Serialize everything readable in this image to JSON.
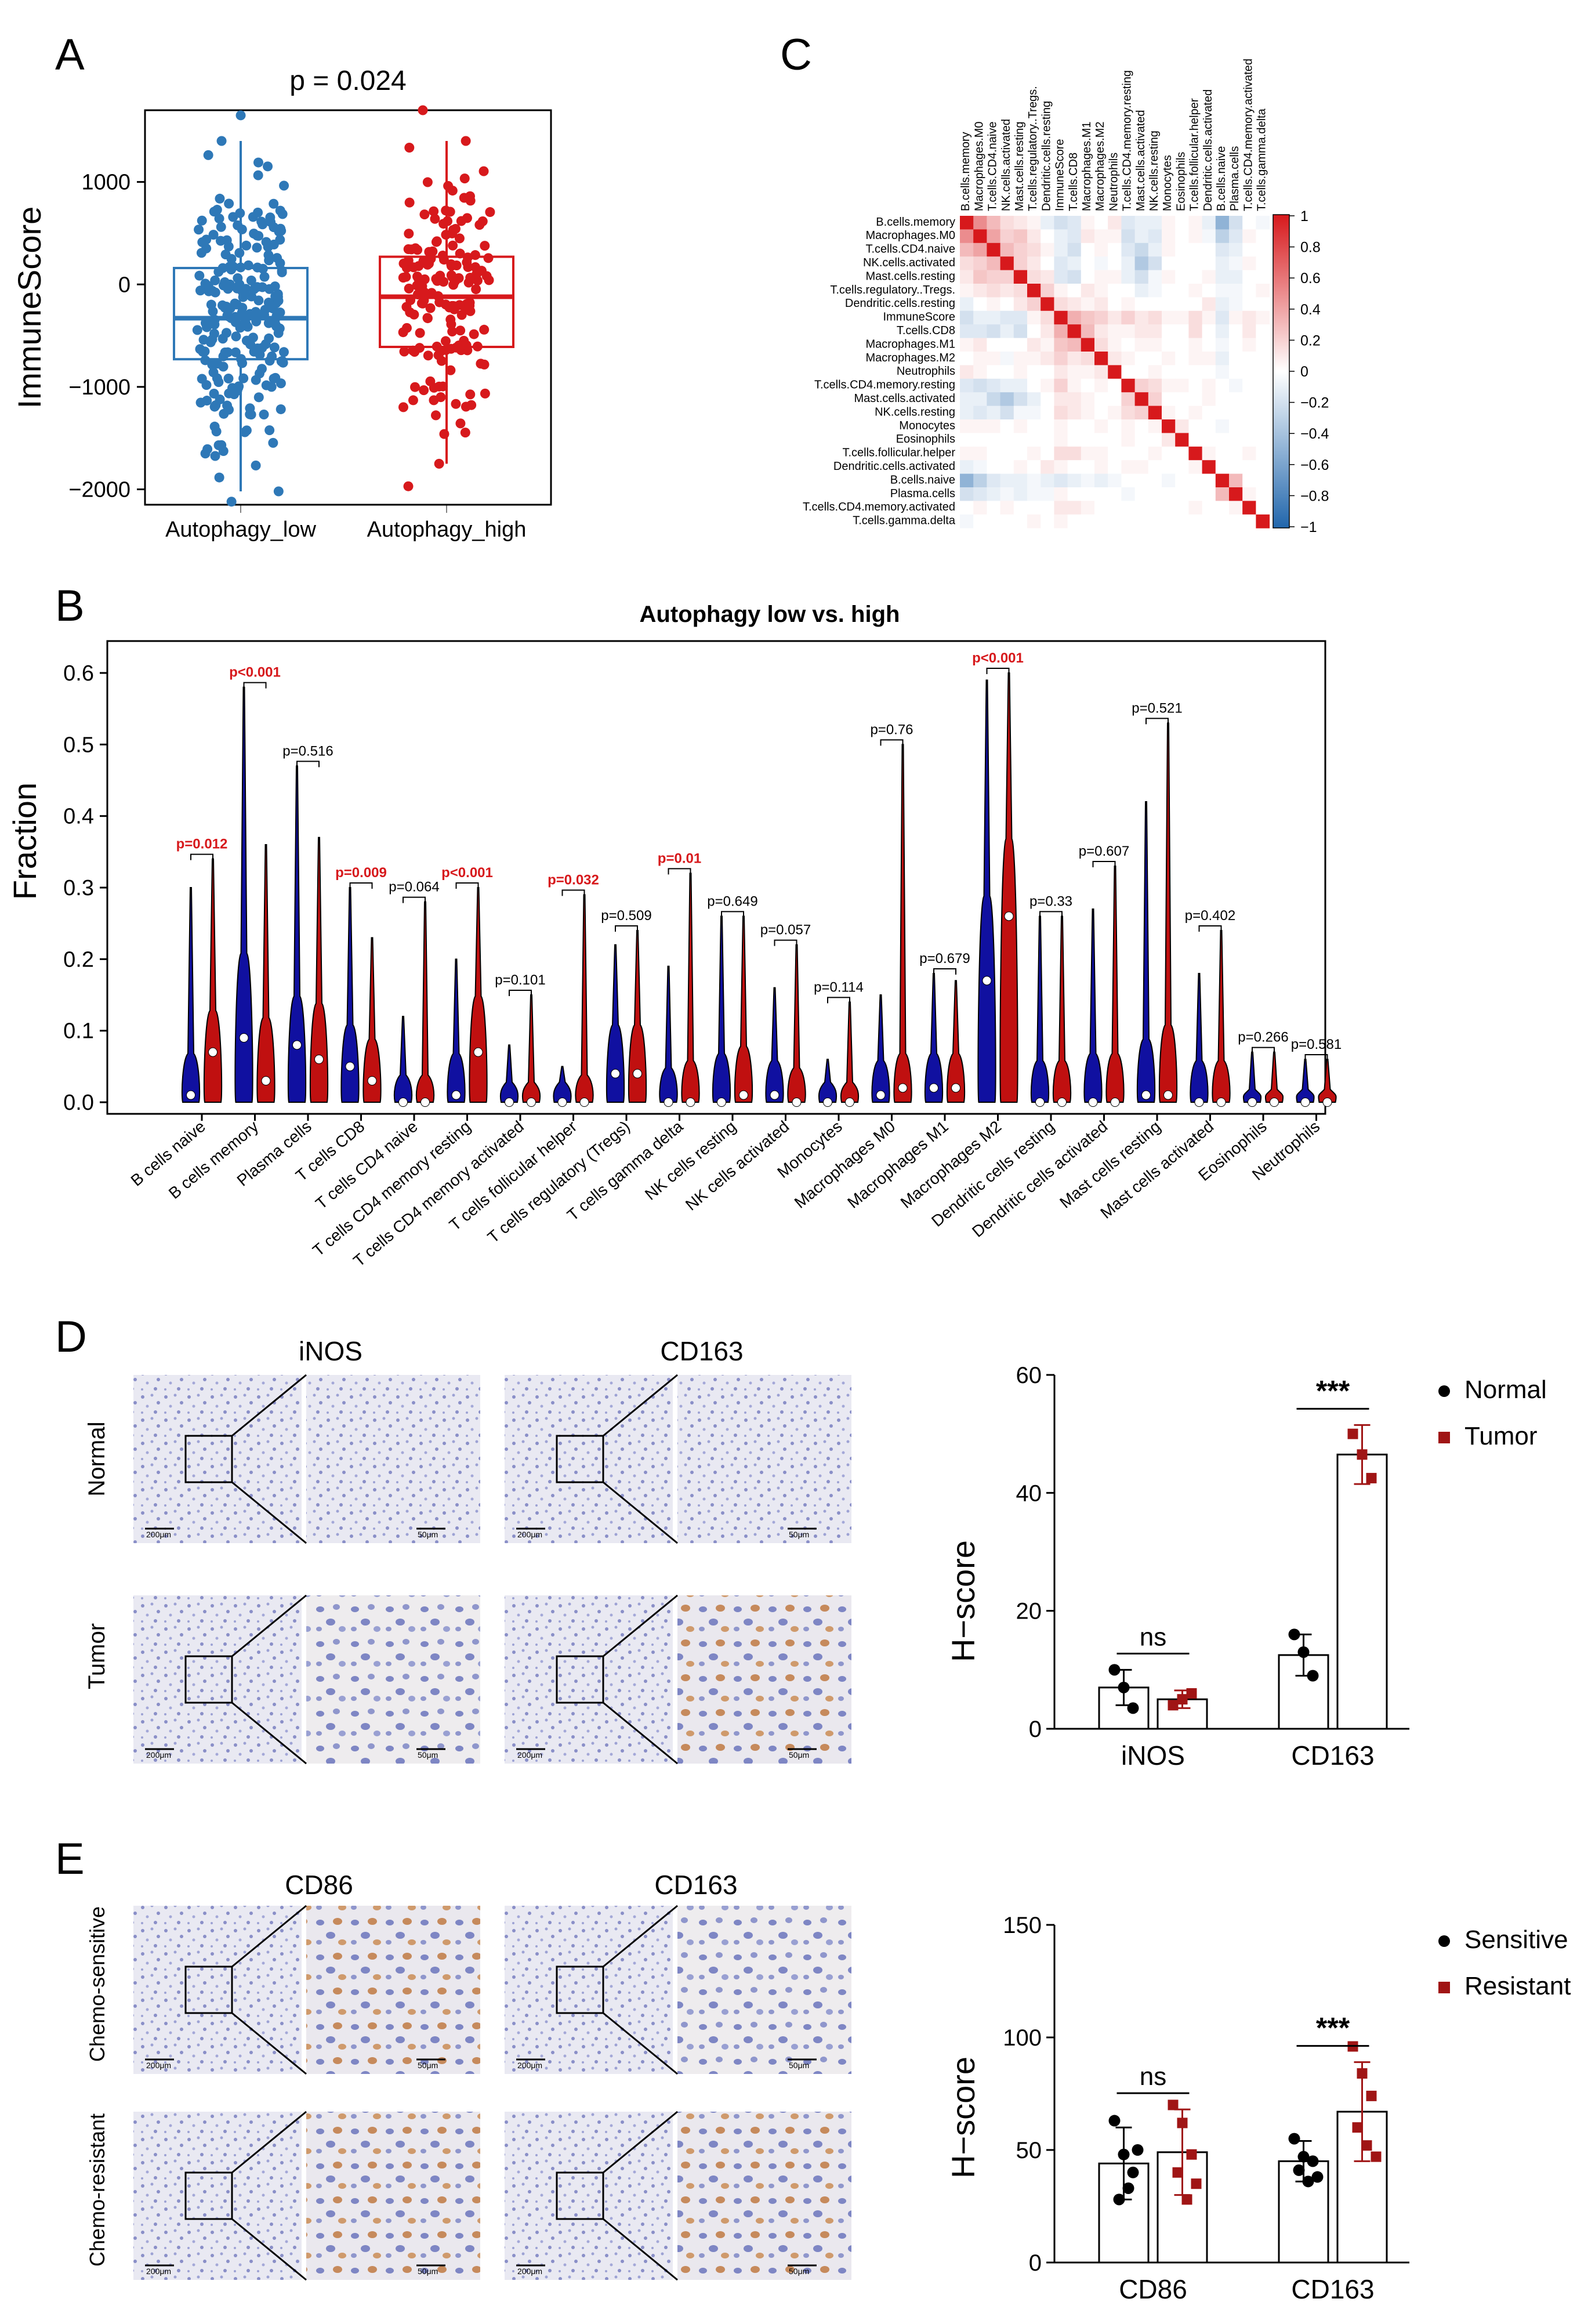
{
  "panels": {
    "A": "A",
    "B": "B",
    "C": "C",
    "D": "D",
    "E": "E"
  },
  "colors": {
    "blue": "#2E78B7",
    "red": "#D7191C",
    "violin_blue": "#1010A0",
    "violin_red": "#C01010",
    "dark_red": "#A01515",
    "black": "#000000"
  },
  "chart_data": [
    {
      "id": "A",
      "type": "box",
      "annotation": "p = 0.024",
      "ylabel": "ImmuneScore",
      "ylim": [
        -2150,
        1700
      ],
      "yticks": [
        1000,
        0,
        -1000,
        -2000
      ],
      "ytick_labels": [
        "1000",
        "0",
        "−1000",
        "−2000"
      ],
      "categories": [
        "Autophagy_low",
        "Autophagy_high"
      ],
      "series": [
        {
          "name": "Autophagy_low",
          "color": "#2E78B7",
          "n": 230,
          "q1": -730,
          "median": -330,
          "q3": 160,
          "whisker_low": -2020,
          "whisker_high": 1400,
          "min": -2120,
          "max": 1650
        },
        {
          "name": "Autophagy_high",
          "color": "#D7191C",
          "n": 170,
          "q1": -610,
          "median": -120,
          "q3": 270,
          "whisker_low": -1750,
          "whisker_high": 1400,
          "min": -1970,
          "max": 1700
        }
      ]
    },
    {
      "id": "C",
      "type": "heatmap",
      "labels": [
        "B.cells.memory",
        "Macrophages.M0",
        "T.cells.CD4.naive",
        "NK.cells.activated",
        "Mast.cells.resting",
        "T.cells.regulatory..Tregs.",
        "Dendritic.cells.resting",
        "ImmuneScore",
        "T.cells.CD8",
        "Macrophages.M1",
        "Macrophages.M2",
        "Neutrophils",
        "T.cells.CD4.memory.resting",
        "Mast.cells.activated",
        "NK.cells.resting",
        "Monocytes",
        "Eosinophils",
        "T.cells.follicular.helper",
        "Dendritic.cells.activated",
        "B.cells.naive",
        "Plasma.cells",
        "T.cells.CD4.memory.activated",
        "T.cells.gamma.delta"
      ],
      "colorbar_ticks": [
        1,
        0.8,
        0.6,
        0.4,
        0.2,
        0,
        -0.2,
        -0.4,
        -0.6,
        -0.8,
        -1
      ],
      "colorbar_labels": [
        "1",
        "0.8",
        "0.6",
        "0.4",
        "0.2",
        "0",
        "−0.2",
        "−0.4",
        "−0.6",
        "−0.8",
        "−1"
      ],
      "values": [
        [
          1,
          0.5,
          0.3,
          0.15,
          0.1,
          0.05,
          -0.1,
          -0.2,
          -0.15,
          0.05,
          0,
          0.1,
          -0.15,
          -0.1,
          -0.1,
          0.05,
          0,
          0.05,
          -0.1,
          -0.5,
          -0.2,
          0,
          -0.05
        ],
        [
          0.5,
          1,
          0.4,
          0.2,
          0.25,
          0.1,
          0,
          -0.1,
          -0.15,
          0.1,
          0.05,
          0.05,
          -0.2,
          -0.1,
          -0.15,
          0.05,
          0,
          0.05,
          -0.05,
          -0.3,
          -0.15,
          0.05,
          0
        ],
        [
          0.3,
          0.4,
          1,
          0.3,
          0.2,
          0.15,
          0.05,
          -0.1,
          -0.2,
          0,
          0.05,
          0,
          -0.15,
          -0.25,
          -0.1,
          0.05,
          0,
          0,
          0,
          -0.15,
          -0.1,
          0,
          0
        ],
        [
          0.15,
          0.2,
          0.3,
          1,
          0.2,
          0.1,
          0,
          -0.15,
          -0.1,
          0,
          -0.05,
          0,
          -0.1,
          -0.35,
          -0.2,
          0,
          0,
          0,
          0,
          -0.1,
          -0.05,
          0.05,
          0
        ],
        [
          0.1,
          0.25,
          0.2,
          0.2,
          1,
          0.15,
          0.1,
          -0.15,
          -0.2,
          0,
          0.05,
          0.05,
          -0.1,
          -0.2,
          -0.05,
          0.05,
          0,
          0,
          0.05,
          -0.1,
          -0.1,
          0,
          0
        ],
        [
          0.05,
          0.1,
          0.15,
          0.1,
          0.15,
          1,
          0.2,
          0.05,
          0,
          0.1,
          0.05,
          0,
          0,
          -0.1,
          -0.05,
          0,
          0,
          0.05,
          0,
          -0.05,
          -0.05,
          0,
          0.05
        ],
        [
          -0.1,
          0,
          0.05,
          0,
          0.1,
          0.2,
          1,
          0.15,
          0.1,
          0.05,
          0.1,
          0,
          0.05,
          0,
          0,
          0,
          0,
          0,
          0.1,
          -0.1,
          -0.05,
          0,
          0
        ],
        [
          -0.2,
          -0.1,
          -0.1,
          -0.15,
          -0.15,
          0.05,
          0.15,
          1,
          0.35,
          0.25,
          0.2,
          0.1,
          0.2,
          0.1,
          0.15,
          0.05,
          0.05,
          0.15,
          0.05,
          -0.15,
          0.05,
          0.1,
          0.05
        ],
        [
          -0.15,
          -0.15,
          -0.2,
          -0.1,
          -0.2,
          0,
          0.1,
          0.35,
          1,
          0.3,
          0.1,
          0.05,
          0.05,
          0.1,
          0.1,
          0,
          0,
          0.15,
          0,
          -0.1,
          0,
          0.1,
          0
        ],
        [
          0.05,
          0.1,
          0,
          0,
          0,
          0.1,
          0.05,
          0.25,
          0.3,
          1,
          0.15,
          0.05,
          0,
          0.05,
          0.05,
          0,
          0,
          0.05,
          0,
          -0.05,
          0,
          0.05,
          0
        ],
        [
          0,
          0.05,
          0.05,
          -0.05,
          0.05,
          0.05,
          0.1,
          0.2,
          0.1,
          0.15,
          1,
          0.1,
          0.05,
          0,
          0,
          0.05,
          0,
          0.05,
          0.05,
          -0.1,
          0,
          0,
          0
        ],
        [
          0.1,
          0.05,
          0,
          0,
          0.05,
          0,
          0,
          0.1,
          0.05,
          0.05,
          0.1,
          1,
          0,
          0,
          0.05,
          0,
          0,
          0,
          0,
          -0.05,
          0,
          0,
          0
        ],
        [
          -0.15,
          -0.2,
          -0.15,
          -0.1,
          -0.1,
          0,
          0.05,
          0.2,
          0.05,
          0,
          0.05,
          0,
          1,
          0.2,
          0.15,
          0.05,
          0.05,
          0,
          0.05,
          0,
          -0.05,
          0,
          0
        ],
        [
          -0.1,
          -0.1,
          -0.25,
          -0.35,
          -0.2,
          -0.1,
          0,
          0.1,
          0.1,
          0.05,
          0,
          0,
          0.2,
          1,
          0.2,
          0,
          0,
          0,
          0.05,
          0,
          0,
          0,
          0
        ],
        [
          -0.1,
          -0.15,
          -0.1,
          -0.2,
          -0.05,
          -0.05,
          0,
          0.15,
          0.1,
          0.05,
          0,
          0.05,
          0.15,
          0.2,
          1,
          0.05,
          0,
          0.05,
          0,
          0,
          0,
          0,
          0
        ],
        [
          0.05,
          0.05,
          0.05,
          0,
          0.05,
          0,
          0,
          0.05,
          0,
          0,
          0.05,
          0,
          0.05,
          0,
          0.05,
          1,
          0.1,
          0,
          0,
          -0.05,
          0,
          0,
          0
        ],
        [
          0,
          0,
          0,
          0,
          0,
          0,
          0,
          0.05,
          0,
          0,
          0,
          0,
          0.05,
          0,
          0,
          0.1,
          1,
          0,
          0,
          0,
          0,
          0,
          0
        ],
        [
          0.05,
          0.05,
          0,
          0,
          0,
          0.05,
          0,
          0.15,
          0.15,
          0.05,
          0.05,
          0,
          0,
          0,
          0.05,
          0,
          0,
          1,
          0.05,
          0,
          0,
          0.05,
          0
        ],
        [
          -0.1,
          -0.05,
          0,
          0,
          0.05,
          0,
          0.1,
          0.05,
          0,
          0,
          0.05,
          0,
          0.05,
          0.05,
          0,
          0,
          0,
          0.05,
          1,
          0,
          0,
          0,
          0
        ],
        [
          -0.5,
          -0.3,
          -0.15,
          -0.1,
          -0.1,
          -0.05,
          -0.1,
          -0.15,
          -0.1,
          -0.05,
          -0.1,
          -0.05,
          0,
          0,
          0,
          -0.05,
          0,
          0,
          0,
          1,
          0.3,
          0,
          0
        ],
        [
          -0.2,
          -0.15,
          -0.1,
          -0.05,
          -0.1,
          -0.05,
          -0.05,
          0.05,
          0,
          0,
          0,
          0,
          -0.05,
          0,
          0,
          0,
          0,
          0,
          0,
          0.3,
          1,
          0.05,
          0
        ],
        [
          0,
          0.05,
          0,
          0.05,
          0,
          0,
          0,
          0.1,
          0.1,
          0.05,
          0,
          0,
          0,
          0,
          0,
          0,
          0,
          0.05,
          0,
          0,
          0.05,
          1,
          0
        ],
        [
          -0.05,
          0,
          0,
          0,
          0,
          0.05,
          0,
          0.05,
          0,
          0,
          0,
          0,
          0,
          0,
          0,
          0,
          0,
          0,
          0,
          0,
          0,
          0,
          1
        ]
      ]
    },
    {
      "id": "B",
      "type": "violin",
      "title": "Autophagy low  vs. high",
      "ylabel": "Fraction",
      "ylim": [
        0,
        0.62
      ],
      "yticks": [
        0.0,
        0.1,
        0.2,
        0.3,
        0.4,
        0.5,
        0.6
      ],
      "ytick_labels": [
        "0.0",
        "0.1",
        "0.2",
        "0.3",
        "0.4",
        "0.5",
        "0.6"
      ],
      "series_names": [
        "Autophagy_low",
        "Autophagy_high"
      ],
      "categories": [
        "B cells naive",
        "B cells memory",
        "Plasma cells",
        "T cells CD8",
        "T cells CD4 naive",
        "T cells CD4 memory resting",
        "T cells CD4 memory activated",
        "T cells follicular helper",
        "T cells regulatory (Tregs)",
        "T cells gamma delta",
        "NK cells resting",
        "NK cells activated",
        "Monocytes",
        "Macrophages M0",
        "Macrophages M1",
        "Macrophages M2",
        "Dendritic cells resting",
        "Dendritic cells activated",
        "Mast cells resting",
        "Mast cells activated",
        "Eosinophils",
        "Neutrophils"
      ],
      "pvalues": [
        "0.012",
        "<0.001",
        "0.516",
        "0.009",
        "0.064",
        "<0.001",
        "0.101",
        "0.032",
        "0.509",
        "0.01",
        "0.649",
        "0.057",
        "0.114",
        "0.76",
        "0.679",
        "<0.001",
        "0.33",
        "0.607",
        "0.521",
        "0.402",
        "0.266",
        "0.581"
      ],
      "significant": [
        true,
        true,
        false,
        true,
        false,
        true,
        false,
        true,
        false,
        true,
        false,
        false,
        false,
        false,
        false,
        true,
        false,
        false,
        false,
        false,
        false,
        false
      ],
      "low_max": [
        0.3,
        0.58,
        0.47,
        0.3,
        0.12,
        0.2,
        0.08,
        0.05,
        0.22,
        0.19,
        0.26,
        0.16,
        0.06,
        0.15,
        0.18,
        0.59,
        0.26,
        0.27,
        0.42,
        0.18,
        0.07,
        0.06
      ],
      "high_max": [
        0.34,
        0.36,
        0.37,
        0.23,
        0.28,
        0.3,
        0.15,
        0.29,
        0.24,
        0.32,
        0.26,
        0.22,
        0.14,
        0.5,
        0.17,
        0.6,
        0.26,
        0.33,
        0.53,
        0.24,
        0.07,
        0.06
      ],
      "low_median": [
        0.01,
        0.09,
        0.08,
        0.05,
        0.0,
        0.01,
        0.0,
        0.0,
        0.04,
        0.0,
        0.0,
        0.01,
        0.0,
        0.01,
        0.02,
        0.17,
        0.0,
        0.0,
        0.01,
        0.0,
        0.0,
        0.0
      ],
      "high_median": [
        0.07,
        0.03,
        0.06,
        0.03,
        0.0,
        0.07,
        0.0,
        0.0,
        0.04,
        0.0,
        0.01,
        0.0,
        0.0,
        0.02,
        0.02,
        0.26,
        0.0,
        0.0,
        0.01,
        0.0,
        0.0,
        0.0
      ],
      "low_body": [
        0.06,
        0.2,
        0.14,
        0.1,
        0.03,
        0.06,
        0.02,
        0.02,
        0.1,
        0.04,
        0.06,
        0.05,
        0.02,
        0.05,
        0.06,
        0.28,
        0.05,
        0.06,
        0.08,
        0.05,
        0.01,
        0.01
      ],
      "high_body": [
        0.12,
        0.11,
        0.13,
        0.08,
        0.03,
        0.14,
        0.02,
        0.03,
        0.1,
        0.05,
        0.07,
        0.04,
        0.02,
        0.06,
        0.06,
        0.36,
        0.05,
        0.06,
        0.1,
        0.05,
        0.01,
        0.01
      ]
    },
    {
      "id": "D",
      "type": "bar",
      "ylabel": "H−score",
      "ylim": [
        0,
        60
      ],
      "yticks": [
        0,
        20,
        40,
        60
      ],
      "categories": [
        "iNOS",
        "CD163"
      ],
      "series": [
        {
          "name": "Normal",
          "values": [
            7,
            12.5
          ],
          "sd": [
            3,
            3.5
          ],
          "points": [
            [
              10,
              7,
              3.5
            ],
            [
              16,
              13,
              9
            ]
          ]
        },
        {
          "name": "Tumor",
          "values": [
            5,
            46.5
          ],
          "sd": [
            1.5,
            5
          ],
          "points": [
            [
              4,
              5,
              6
            ],
            [
              50,
              46.5,
              42.5
            ]
          ]
        }
      ],
      "significance": [
        "ns",
        "***"
      ],
      "legend": [
        "Normal",
        "Tumor"
      ]
    },
    {
      "id": "E",
      "type": "bar",
      "ylabel": "H−score",
      "ylim": [
        0,
        150
      ],
      "yticks": [
        0,
        50,
        100,
        150
      ],
      "categories": [
        "CD86",
        "CD163"
      ],
      "series": [
        {
          "name": "Sensitive",
          "values": [
            44,
            45
          ],
          "sd": [
            16,
            9
          ],
          "points": [
            [
              63,
              48,
              40,
              28,
              33,
              50
            ],
            [
              55,
              47,
              45,
              41,
              36,
              38
            ]
          ]
        },
        {
          "name": "Resistant",
          "values": [
            49,
            67
          ],
          "sd": [
            19,
            22
          ],
          "points": [
            [
              70,
              62,
              48,
              40,
              28,
              35
            ],
            [
              96,
              84,
              74,
              60,
              52,
              47
            ]
          ]
        }
      ],
      "significance": [
        "ns",
        "***"
      ],
      "legend": [
        "Sensitive",
        "Resistant"
      ]
    }
  ],
  "micrographs": {
    "D": {
      "columns": [
        "iNOS",
        "CD163"
      ],
      "rows": [
        "Normal",
        "Tumor"
      ],
      "scale_bars": [
        "200μm",
        "50μm"
      ]
    },
    "E": {
      "columns": [
        "CD86",
        "CD163"
      ],
      "rows": [
        "Chemo-sensitive",
        "Chemo-resistant"
      ],
      "scale_bars": [
        "200μm",
        "50μm"
      ]
    }
  }
}
